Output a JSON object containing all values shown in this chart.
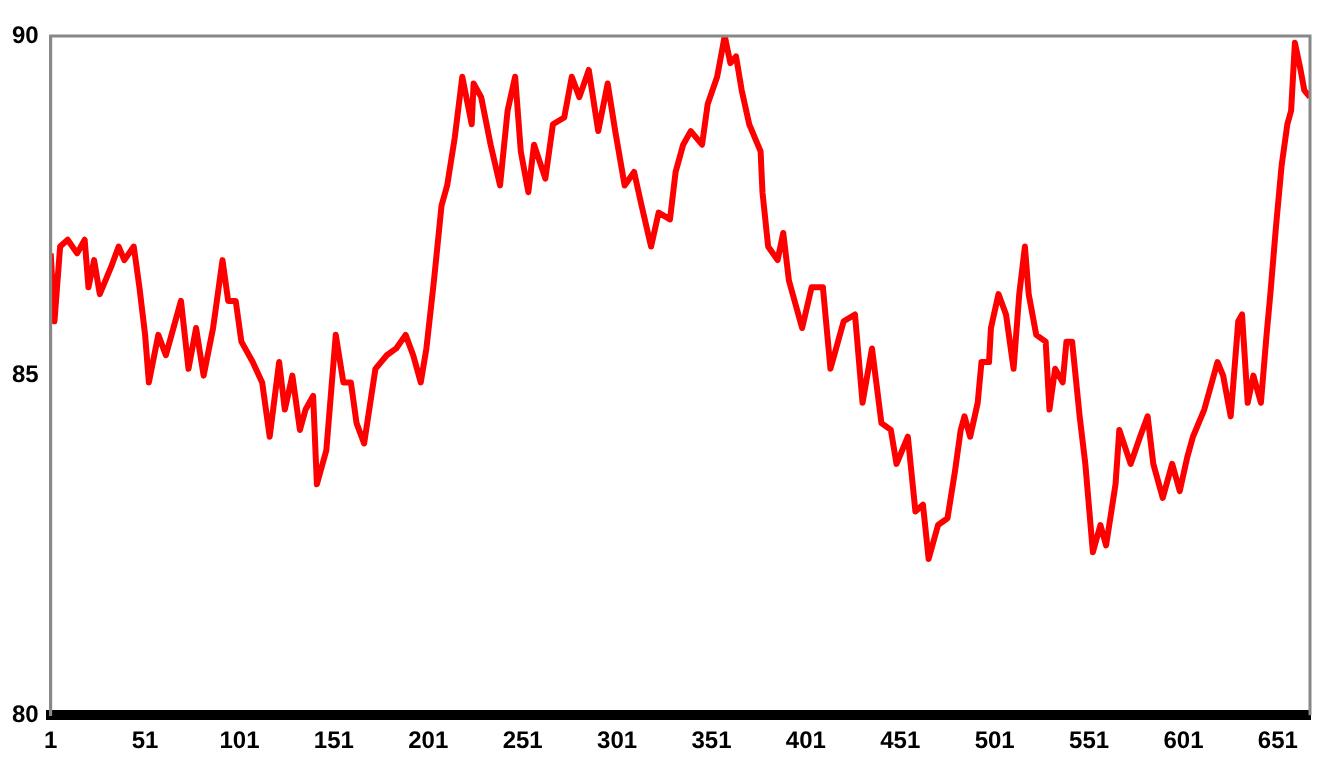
{
  "chart_data": {
    "type": "line",
    "x": [
      1,
      3,
      6,
      10,
      15,
      19,
      21,
      24,
      27,
      33,
      37,
      40,
      45,
      48,
      51,
      53,
      58,
      62,
      65,
      70,
      74,
      78,
      82,
      87,
      92,
      95,
      99,
      102,
      108,
      113,
      117,
      122,
      125,
      129,
      133,
      136,
      140,
      142,
      147,
      152,
      156,
      160,
      163,
      167,
      173,
      179,
      184,
      189,
      193,
      197,
      200,
      204,
      208,
      211,
      215,
      219,
      224,
      225,
      229,
      234,
      239,
      243,
      247,
      250,
      254,
      257,
      263,
      267,
      273,
      277,
      281,
      286,
      291,
      296,
      300,
      305,
      310,
      314,
      319,
      323,
      329,
      332,
      336,
      340,
      346,
      349,
      354,
      358,
      361,
      364,
      367,
      371,
      377,
      378,
      381,
      386,
      389,
      392,
      399,
      404,
      410,
      414,
      421,
      427,
      431,
      436,
      441,
      446,
      449,
      455,
      459,
      463,
      466,
      471,
      476,
      480,
      483,
      485,
      488,
      492,
      494,
      498,
      499,
      503,
      507,
      511,
      514,
      517,
      519,
      523,
      528,
      530,
      533,
      537,
      539,
      542,
      546,
      549,
      553,
      557,
      560,
      565,
      567,
      573,
      578,
      582,
      585,
      590,
      595,
      599,
      603,
      606,
      612,
      615,
      619,
      622,
      626,
      630,
      632,
      635,
      638,
      642,
      645,
      647,
      650,
      653,
      656,
      658,
      660,
      663,
      665,
      668
    ],
    "series": [
      {
        "color": "#ff0000",
        "values": [
          86.8,
          85.8,
          86.9,
          87.0,
          86.8,
          87.0,
          86.3,
          86.7,
          86.2,
          86.6,
          86.9,
          86.7,
          86.9,
          86.3,
          85.6,
          84.9,
          85.6,
          85.3,
          85.6,
          86.1,
          85.1,
          85.7,
          85.0,
          85.7,
          86.7,
          86.1,
          86.1,
          85.5,
          85.2,
          84.9,
          84.1,
          85.2,
          84.5,
          85.0,
          84.2,
          84.5,
          84.7,
          83.4,
          83.9,
          85.6,
          84.9,
          84.9,
          84.3,
          84.0,
          85.1,
          85.3,
          85.4,
          85.6,
          85.3,
          84.9,
          85.4,
          86.4,
          87.5,
          87.8,
          88.5,
          89.4,
          88.7,
          89.3,
          89.1,
          88.4,
          87.8,
          88.9,
          89.4,
          88.3,
          87.7,
          88.4,
          87.9,
          88.7,
          88.8,
          89.4,
          89.1,
          89.5,
          88.6,
          89.3,
          88.6,
          87.8,
          88.0,
          87.5,
          86.9,
          87.4,
          87.3,
          88.0,
          88.4,
          88.6,
          88.4,
          89.0,
          89.4,
          90.0,
          89.6,
          89.7,
          89.2,
          88.7,
          88.3,
          87.7,
          86.9,
          86.7,
          87.1,
          86.4,
          85.7,
          86.3,
          86.3,
          85.1,
          85.8,
          85.9,
          84.6,
          85.4,
          84.3,
          84.2,
          83.7,
          84.1,
          83.0,
          83.1,
          82.3,
          82.8,
          82.9,
          83.6,
          84.2,
          84.4,
          84.1,
          84.6,
          85.2,
          85.2,
          85.7,
          86.2,
          85.9,
          85.1,
          86.2,
          86.9,
          86.2,
          85.6,
          85.5,
          84.5,
          85.1,
          84.9,
          85.5,
          85.5,
          84.4,
          83.7,
          82.4,
          82.8,
          82.5,
          83.4,
          84.2,
          83.7,
          84.1,
          84.4,
          83.7,
          83.2,
          83.7,
          83.3,
          83.8,
          84.1,
          84.5,
          84.8,
          85.2,
          85.0,
          84.4,
          85.8,
          85.9,
          84.6,
          85.0,
          84.6,
          85.6,
          86.2,
          87.2,
          88.1,
          88.7,
          88.9,
          89.9,
          89.5,
          89.2,
          89.1
        ]
      }
    ],
    "xlim": [
      1,
      668
    ],
    "xticks": [
      1,
      51,
      101,
      151,
      201,
      251,
      301,
      351,
      401,
      451,
      501,
      551,
      601,
      651
    ],
    "ylim": [
      80,
      90
    ],
    "yticks": [
      80,
      85,
      90
    ]
  }
}
